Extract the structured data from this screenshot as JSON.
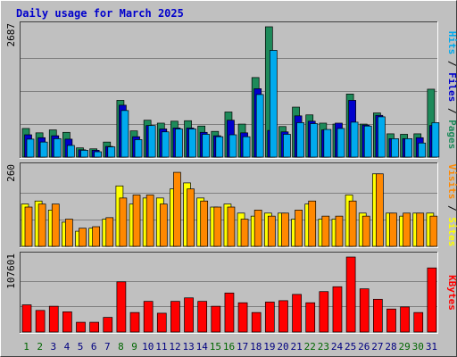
{
  "title": "Daily usage for March 2025",
  "chart_data": [
    {
      "type": "bar",
      "panel": "hits-files-pages",
      "y_max_label": "2687",
      "ylim": [
        0,
        2687
      ],
      "right_label": [
        "Pages",
        "Files",
        "Hits"
      ],
      "categories": [
        "1",
        "2",
        "3",
        "4",
        "5",
        "6",
        "7",
        "8",
        "9",
        "10",
        "11",
        "12",
        "13",
        "14",
        "15",
        "16",
        "17",
        "18",
        "19",
        "20",
        "21",
        "22",
        "23",
        "24",
        "25",
        "26",
        "27",
        "28",
        "29",
        "30",
        "31"
      ],
      "series": [
        {
          "name": "Hits",
          "color": "#1e8a5a",
          "values": [
            590,
            500,
            560,
            510,
            190,
            170,
            310,
            1170,
            540,
            760,
            700,
            740,
            750,
            640,
            530,
            930,
            680,
            1640,
            2687,
            630,
            1030,
            870,
            700,
            680,
            1300,
            680,
            910,
            480,
            470,
            480,
            1400
          ]
        },
        {
          "name": "Files",
          "color": "#0000cc",
          "values": [
            460,
            400,
            440,
            370,
            150,
            140,
            220,
            1070,
            420,
            650,
            580,
            600,
            600,
            510,
            440,
            760,
            500,
            1410,
            550,
            520,
            850,
            740,
            560,
            700,
            1170,
            660,
            860,
            380,
            380,
            400,
            650
          ]
        },
        {
          "name": "Pages",
          "color": "#00aaee",
          "values": [
            370,
            310,
            380,
            240,
            140,
            110,
            210,
            960,
            360,
            650,
            520,
            580,
            580,
            470,
            420,
            460,
            420,
            1290,
            2200,
            470,
            710,
            690,
            570,
            590,
            720,
            640,
            830,
            380,
            380,
            290,
            710
          ]
        }
      ]
    },
    {
      "type": "bar",
      "panel": "visits-sites",
      "y_max_label": "260",
      "ylim": [
        0,
        260
      ],
      "right_label": [
        "Sites",
        "Visits"
      ],
      "categories": [
        "1",
        "2",
        "3",
        "4",
        "5",
        "6",
        "7",
        "8",
        "9",
        "10",
        "11",
        "12",
        "13",
        "14",
        "15",
        "16",
        "17",
        "18",
        "19",
        "20",
        "21",
        "22",
        "23",
        "24",
        "25",
        "26",
        "27",
        "28",
        "29",
        "30",
        "31"
      ],
      "series": [
        {
          "name": "Visits",
          "color": "#ffff00",
          "values": [
            140,
            150,
            120,
            80,
            50,
            60,
            90,
            200,
            140,
            160,
            160,
            190,
            210,
            160,
            130,
            140,
            110,
            100,
            110,
            110,
            90,
            140,
            90,
            90,
            170,
            110,
            240,
            110,
            100,
            110,
            110
          ]
        },
        {
          "name": "Sites",
          "color": "#ff8800",
          "values": [
            130,
            140,
            140,
            90,
            60,
            65,
            95,
            160,
            170,
            170,
            140,
            245,
            190,
            150,
            130,
            130,
            90,
            120,
            100,
            110,
            120,
            150,
            100,
            100,
            150,
            100,
            240,
            110,
            110,
            110,
            100
          ]
        }
      ]
    },
    {
      "type": "bar",
      "panel": "kbytes",
      "y_max_label": "107601",
      "ylim": [
        0,
        107601
      ],
      "right_label": [
        "KBytes"
      ],
      "categories": [
        "1",
        "2",
        "3",
        "4",
        "5",
        "6",
        "7",
        "8",
        "9",
        "10",
        "11",
        "12",
        "13",
        "14",
        "15",
        "16",
        "17",
        "18",
        "19",
        "20",
        "21",
        "22",
        "23",
        "24",
        "25",
        "26",
        "27",
        "28",
        "29",
        "30",
        "31"
      ],
      "series": [
        {
          "name": "KBytes",
          "color": "#ff0000",
          "values": [
            39000,
            31000,
            37000,
            29000,
            14000,
            14000,
            21000,
            72000,
            28000,
            44000,
            27000,
            44000,
            49000,
            44000,
            37000,
            56000,
            42000,
            28000,
            43000,
            45000,
            54000,
            42000,
            58000,
            65000,
            107601,
            62000,
            47000,
            33000,
            36000,
            28000,
            92000
          ]
        }
      ]
    }
  ],
  "x_labels": [
    "1",
    "2",
    "3",
    "4",
    "5",
    "6",
    "7",
    "8",
    "9",
    "10",
    "11",
    "12",
    "13",
    "14",
    "15",
    "16",
    "17",
    "18",
    "19",
    "20",
    "21",
    "22",
    "23",
    "24",
    "25",
    "26",
    "27",
    "28",
    "29",
    "30",
    "31"
  ],
  "weekend_days": [
    "1",
    "2",
    "8",
    "9",
    "15",
    "16",
    "22",
    "23",
    "29",
    "30"
  ],
  "colors": {
    "background": "#c0c0c0",
    "plot_bg": "#c0c0c0",
    "grid": "#808080",
    "weekday_label": "#000080",
    "weekend_label": "#006600",
    "title": "#0000cc"
  }
}
